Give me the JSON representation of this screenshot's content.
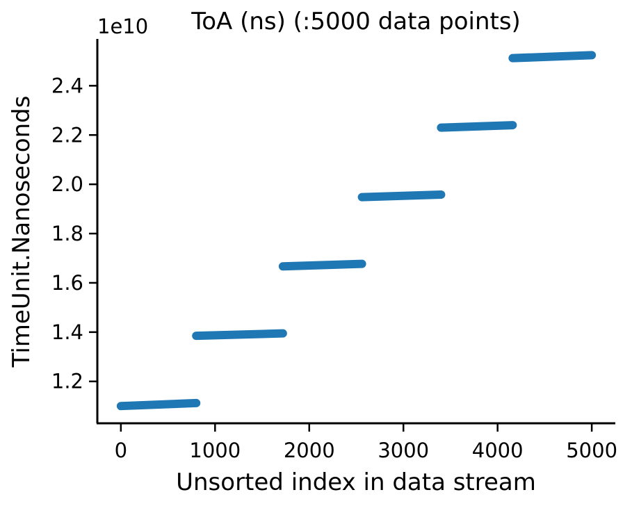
{
  "chart_data": {
    "type": "scatter",
    "title": "ToA (ns) (:5000 data points)",
    "xlabel": "Unsorted index in data stream",
    "ylabel": "TimeUnit.Nanoseconds",
    "y_offset_label": "1e10",
    "xlim": [
      -250,
      5250
    ],
    "ylim": [
      10300000000.0,
      25900000000.0
    ],
    "x_ticks": [
      0,
      1000,
      2000,
      3000,
      4000,
      5000
    ],
    "x_tick_labels": [
      "0",
      "1000",
      "2000",
      "3000",
      "4000",
      "5000"
    ],
    "y_ticks": [
      12000000000.0,
      14000000000.0,
      16000000000.0,
      18000000000.0,
      20000000000.0,
      22000000000.0,
      24000000000.0
    ],
    "y_tick_labels": [
      "1.2",
      "1.4",
      "1.6",
      "1.8",
      "2.0",
      "2.2",
      "2.4"
    ],
    "grid": false,
    "legend": "none",
    "series": [
      {
        "color": "#1f77b4",
        "segments": [
          {
            "x": [
              0,
              800
            ],
            "y": [
              11000000000.0,
              11120000000.0
            ]
          },
          {
            "x": [
              800,
              1720
            ],
            "y": [
              13850000000.0,
              13950000000.0
            ]
          },
          {
            "x": [
              1720,
              2560
            ],
            "y": [
              16670000000.0,
              16770000000.0
            ]
          },
          {
            "x": [
              2560,
              3400
            ],
            "y": [
              19480000000.0,
              19580000000.0
            ]
          },
          {
            "x": [
              3400,
              4160
            ],
            "y": [
              22300000000.0,
              22400000000.0
            ]
          },
          {
            "x": [
              4160,
              5000
            ],
            "y": [
              25120000000.0,
              25240000000.0
            ]
          }
        ]
      }
    ]
  }
}
